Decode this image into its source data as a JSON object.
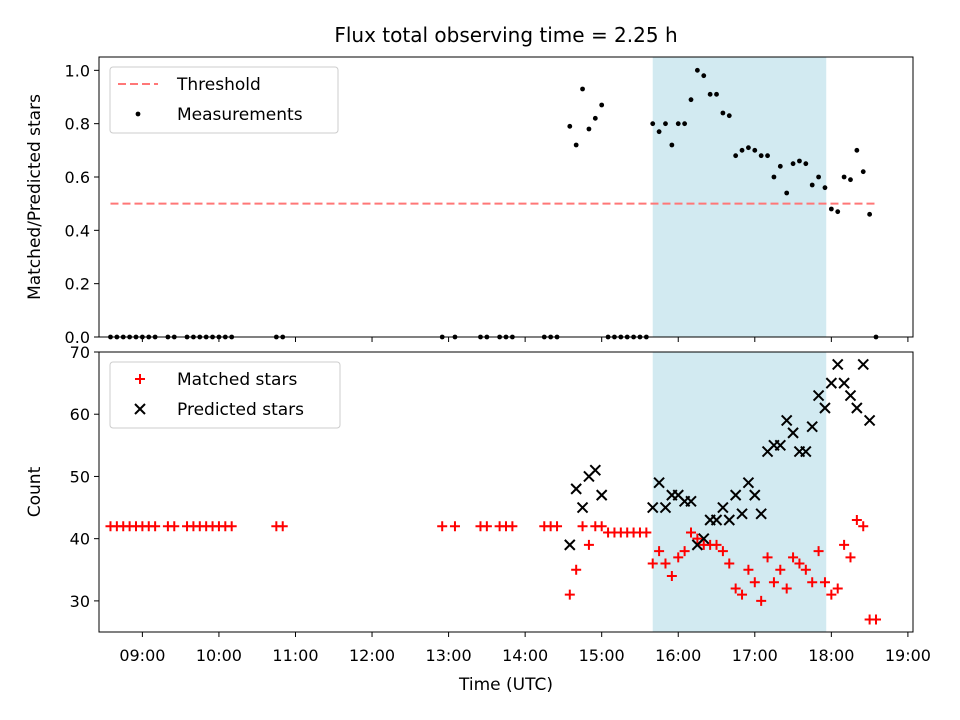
{
  "title": "Flux total observing time = 2.25 h",
  "xlabel": "Time (UTC)",
  "x_ticks": [
    "09:00",
    "10:00",
    "11:00",
    "12:00",
    "13:00",
    "14:00",
    "15:00",
    "16:00",
    "17:00",
    "18:00",
    "19:00"
  ],
  "colors": {
    "threshold": "#ff7777",
    "matched": "#ff0000",
    "predicted": "#000000",
    "span": "#add8e6"
  },
  "chart_data": [
    {
      "type": "scatter",
      "ylabel": "Matched/Predicted stars",
      "ylim": [
        0,
        1.05
      ],
      "xlim": [
        "08:26",
        "19:04"
      ],
      "y_ticks": [
        "0.0",
        "0.2",
        "0.4",
        "0.6",
        "0.8",
        "1.0"
      ],
      "legend": {
        "position": "upper-left",
        "entries": [
          "Threshold",
          "Measurements"
        ]
      },
      "shaded_span": [
        "15:40",
        "17:56"
      ],
      "threshold": {
        "name": "Threshold",
        "y": 0.5,
        "x": [
          "08:35",
          "18:35"
        ]
      },
      "series": [
        {
          "name": "Measurements",
          "points": [
            [
              "08:35",
              0
            ],
            [
              "08:40",
              0
            ],
            [
              "08:45",
              0
            ],
            [
              "08:50",
              0
            ],
            [
              "08:55",
              0
            ],
            [
              "09:00",
              0
            ],
            [
              "09:05",
              0
            ],
            [
              "09:10",
              0
            ],
            [
              "09:20",
              0
            ],
            [
              "09:25",
              0
            ],
            [
              "09:35",
              0
            ],
            [
              "09:40",
              0
            ],
            [
              "09:45",
              0
            ],
            [
              "09:50",
              0
            ],
            [
              "09:55",
              0
            ],
            [
              "10:00",
              0
            ],
            [
              "10:05",
              0
            ],
            [
              "10:10",
              0
            ],
            [
              "10:45",
              0
            ],
            [
              "10:50",
              0
            ],
            [
              "12:55",
              0
            ],
            [
              "13:05",
              0
            ],
            [
              "13:25",
              0
            ],
            [
              "13:30",
              0
            ],
            [
              "13:40",
              0
            ],
            [
              "13:45",
              0
            ],
            [
              "13:50",
              0
            ],
            [
              "14:15",
              0
            ],
            [
              "14:20",
              0
            ],
            [
              "14:25",
              0
            ],
            [
              "14:35",
              0.79
            ],
            [
              "14:40",
              0.72
            ],
            [
              "14:45",
              0.93
            ],
            [
              "14:50",
              0.78
            ],
            [
              "14:55",
              0.82
            ],
            [
              "15:00",
              0.87
            ],
            [
              "15:05",
              0
            ],
            [
              "15:10",
              0
            ],
            [
              "15:15",
              0
            ],
            [
              "15:20",
              0
            ],
            [
              "15:25",
              0
            ],
            [
              "15:30",
              0
            ],
            [
              "15:35",
              0
            ],
            [
              "15:40",
              0.8
            ],
            [
              "15:45",
              0.77
            ],
            [
              "15:50",
              0.8
            ],
            [
              "15:55",
              0.72
            ],
            [
              "16:00",
              0.8
            ],
            [
              "16:05",
              0.8
            ],
            [
              "16:10",
              0.89
            ],
            [
              "16:15",
              1.0
            ],
            [
              "16:20",
              0.98
            ],
            [
              "16:25",
              0.91
            ],
            [
              "16:30",
              0.91
            ],
            [
              "16:35",
              0.84
            ],
            [
              "16:40",
              0.83
            ],
            [
              "16:45",
              0.68
            ],
            [
              "16:50",
              0.7
            ],
            [
              "16:55",
              0.71
            ],
            [
              "17:00",
              0.7
            ],
            [
              "17:05",
              0.68
            ],
            [
              "17:10",
              0.68
            ],
            [
              "17:15",
              0.6
            ],
            [
              "17:20",
              0.64
            ],
            [
              "17:25",
              0.54
            ],
            [
              "17:30",
              0.65
            ],
            [
              "17:35",
              0.66
            ],
            [
              "17:40",
              0.65
            ],
            [
              "17:45",
              0.57
            ],
            [
              "17:50",
              0.6
            ],
            [
              "17:55",
              0.56
            ],
            [
              "18:00",
              0.48
            ],
            [
              "18:05",
              0.47
            ],
            [
              "18:10",
              0.6
            ],
            [
              "18:15",
              0.59
            ],
            [
              "18:20",
              0.7
            ],
            [
              "18:25",
              0.62
            ],
            [
              "18:30",
              0.46
            ],
            [
              "18:35",
              0
            ]
          ]
        }
      ]
    },
    {
      "type": "scatter",
      "ylabel": "Count",
      "ylim": [
        25,
        70
      ],
      "xlim": [
        "08:26",
        "19:04"
      ],
      "y_ticks": [
        "30",
        "40",
        "50",
        "60",
        "70"
      ],
      "legend": {
        "position": "upper-left",
        "entries": [
          "Matched stars",
          "Predicted stars"
        ]
      },
      "shaded_span": [
        "15:40",
        "17:56"
      ],
      "series": [
        {
          "name": "Matched stars",
          "marker": "+",
          "points": [
            [
              "08:35",
              42
            ],
            [
              "08:40",
              42
            ],
            [
              "08:45",
              42
            ],
            [
              "08:50",
              42
            ],
            [
              "08:55",
              42
            ],
            [
              "09:00",
              42
            ],
            [
              "09:05",
              42
            ],
            [
              "09:10",
              42
            ],
            [
              "09:20",
              42
            ],
            [
              "09:25",
              42
            ],
            [
              "09:35",
              42
            ],
            [
              "09:40",
              42
            ],
            [
              "09:45",
              42
            ],
            [
              "09:50",
              42
            ],
            [
              "09:55",
              42
            ],
            [
              "10:00",
              42
            ],
            [
              "10:05",
              42
            ],
            [
              "10:10",
              42
            ],
            [
              "10:45",
              42
            ],
            [
              "10:50",
              42
            ],
            [
              "12:55",
              42
            ],
            [
              "13:05",
              42
            ],
            [
              "13:25",
              42
            ],
            [
              "13:30",
              42
            ],
            [
              "13:40",
              42
            ],
            [
              "13:45",
              42
            ],
            [
              "13:50",
              42
            ],
            [
              "14:15",
              42
            ],
            [
              "14:20",
              42
            ],
            [
              "14:25",
              42
            ],
            [
              "14:35",
              31
            ],
            [
              "14:40",
              35
            ],
            [
              "14:45",
              42
            ],
            [
              "14:50",
              39
            ],
            [
              "14:55",
              42
            ],
            [
              "15:00",
              42
            ],
            [
              "15:05",
              41
            ],
            [
              "15:10",
              41
            ],
            [
              "15:15",
              41
            ],
            [
              "15:20",
              41
            ],
            [
              "15:25",
              41
            ],
            [
              "15:30",
              41
            ],
            [
              "15:35",
              41
            ],
            [
              "15:40",
              36
            ],
            [
              "15:45",
              38
            ],
            [
              "15:50",
              36
            ],
            [
              "15:55",
              34
            ],
            [
              "16:00",
              37
            ],
            [
              "16:05",
              38
            ],
            [
              "16:10",
              41
            ],
            [
              "16:15",
              40
            ],
            [
              "16:20",
              39
            ],
            [
              "16:25",
              39
            ],
            [
              "16:30",
              39
            ],
            [
              "16:35",
              38
            ],
            [
              "16:40",
              36
            ],
            [
              "16:45",
              32
            ],
            [
              "16:50",
              31
            ],
            [
              "16:55",
              35
            ],
            [
              "17:00",
              33
            ],
            [
              "17:05",
              30
            ],
            [
              "17:10",
              37
            ],
            [
              "17:15",
              33
            ],
            [
              "17:20",
              35
            ],
            [
              "17:25",
              32
            ],
            [
              "17:30",
              37
            ],
            [
              "17:35",
              36
            ],
            [
              "17:40",
              35
            ],
            [
              "17:45",
              33
            ],
            [
              "17:50",
              38
            ],
            [
              "17:55",
              33
            ],
            [
              "18:00",
              31
            ],
            [
              "18:05",
              32
            ],
            [
              "18:10",
              39
            ],
            [
              "18:15",
              37
            ],
            [
              "18:20",
              43
            ],
            [
              "18:25",
              42
            ],
            [
              "18:30",
              27
            ],
            [
              "18:35",
              27
            ]
          ]
        },
        {
          "name": "Predicted stars",
          "marker": "x",
          "points": [
            [
              "14:35",
              39
            ],
            [
              "14:40",
              48
            ],
            [
              "14:45",
              45
            ],
            [
              "14:50",
              50
            ],
            [
              "14:55",
              51
            ],
            [
              "15:00",
              47
            ],
            [
              "15:40",
              45
            ],
            [
              "15:45",
              49
            ],
            [
              "15:50",
              45
            ],
            [
              "15:55",
              47
            ],
            [
              "16:00",
              47
            ],
            [
              "16:05",
              46
            ],
            [
              "16:10",
              46
            ],
            [
              "16:15",
              39
            ],
            [
              "16:20",
              40
            ],
            [
              "16:25",
              43
            ],
            [
              "16:30",
              43
            ],
            [
              "16:35",
              45
            ],
            [
              "16:40",
              43
            ],
            [
              "16:45",
              47
            ],
            [
              "16:50",
              44
            ],
            [
              "16:55",
              49
            ],
            [
              "17:00",
              47
            ],
            [
              "17:05",
              44
            ],
            [
              "17:10",
              54
            ],
            [
              "17:15",
              55
            ],
            [
              "17:20",
              55
            ],
            [
              "17:25",
              59
            ],
            [
              "17:30",
              57
            ],
            [
              "17:35",
              54
            ],
            [
              "17:40",
              54
            ],
            [
              "17:45",
              58
            ],
            [
              "17:50",
              63
            ],
            [
              "17:55",
              61
            ],
            [
              "18:00",
              65
            ],
            [
              "18:05",
              68
            ],
            [
              "18:10",
              65
            ],
            [
              "18:15",
              63
            ],
            [
              "18:20",
              61
            ],
            [
              "18:25",
              68
            ],
            [
              "18:30",
              59
            ]
          ]
        }
      ]
    }
  ]
}
